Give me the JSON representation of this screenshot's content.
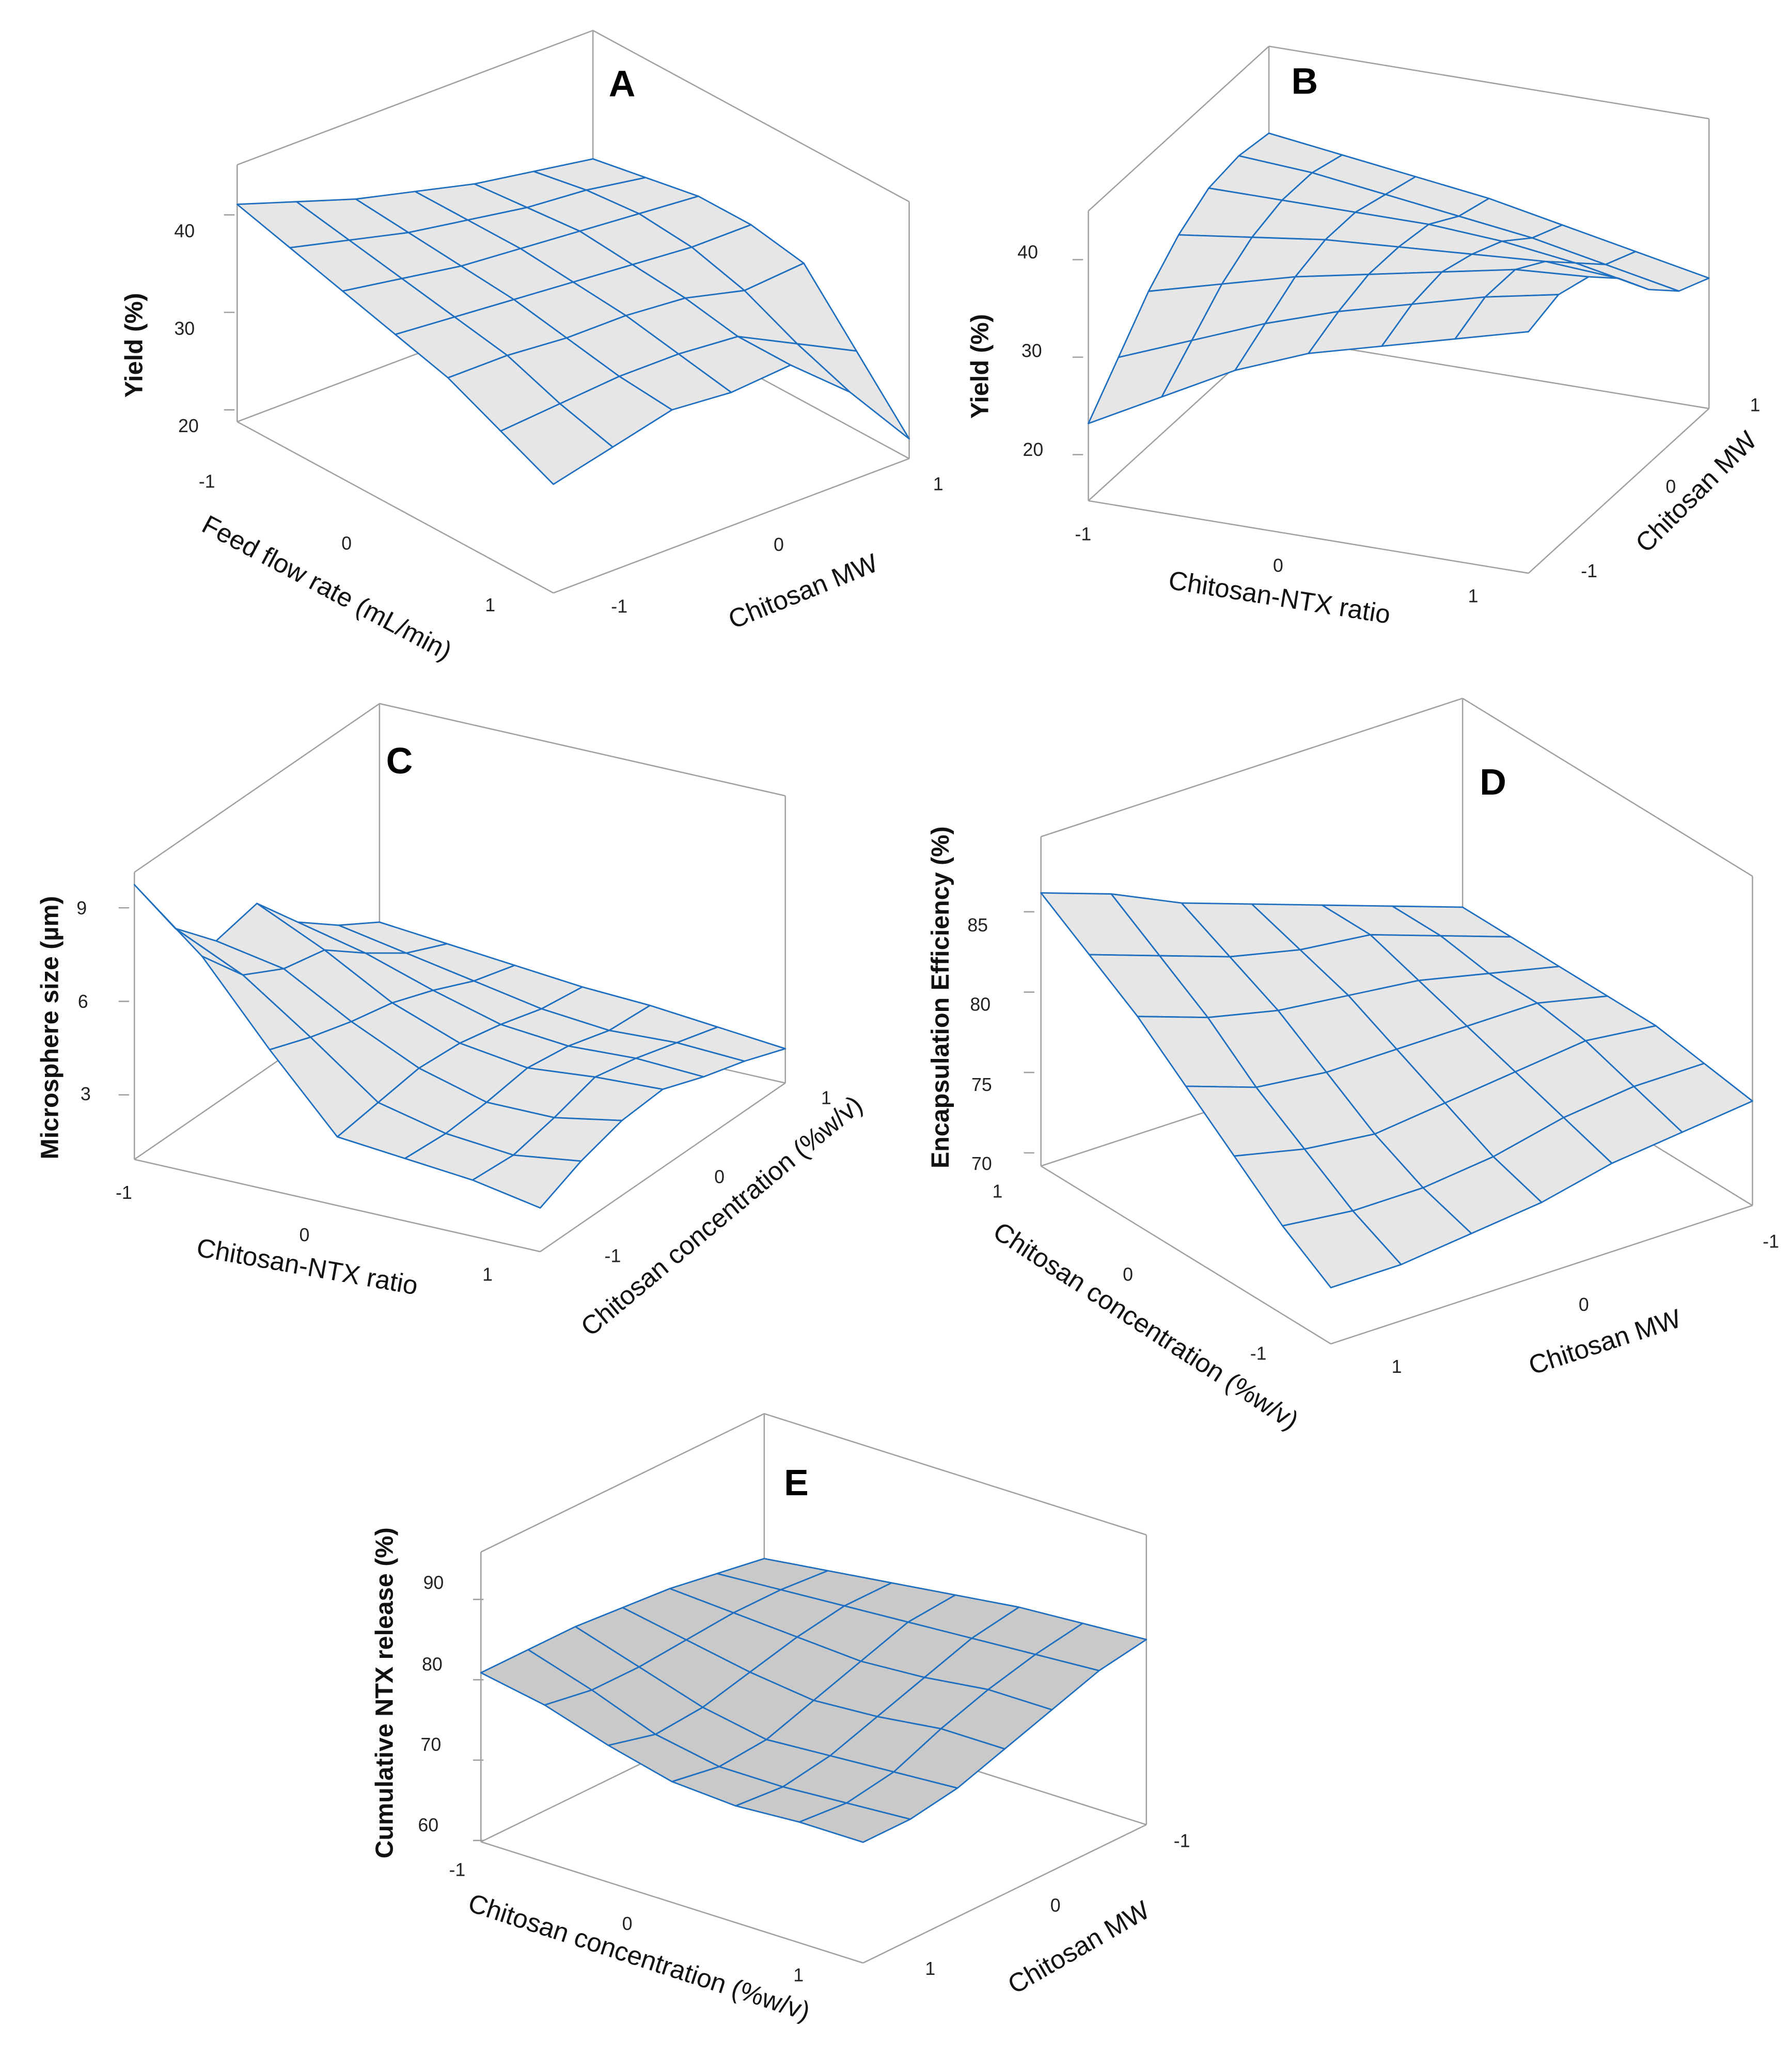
{
  "chart_data": [
    {
      "type": "surface",
      "panel": "A",
      "xlabel": "Feed flow rate (mL/min)",
      "ylabel": "Chitosan MW",
      "zlabel": "Yield (%)",
      "x_ticks": [
        "-1",
        "0",
        "1"
      ],
      "y_ticks": [
        "-1",
        "0",
        "1"
      ],
      "z_ticks": [
        "40",
        "30",
        "20"
      ],
      "xlim": [
        -1,
        1
      ],
      "ylim": [
        -1,
        1
      ],
      "zlim": [
        19,
        45
      ],
      "surface_color": "#e6e6e6",
      "mesh_color": "#1f6fc0",
      "z": [
        [
          41,
          39,
          37,
          35.5,
          34,
          33,
          32
        ],
        [
          39.5,
          38,
          36.5,
          35.5,
          34.5,
          34,
          33
        ],
        [
          38,
          37,
          36,
          35.5,
          35,
          34.5,
          34
        ],
        [
          36.5,
          36,
          35.5,
          35,
          34.5,
          34,
          34
        ],
        [
          35,
          35,
          34.5,
          34.5,
          34,
          32.5,
          33
        ],
        [
          32.5,
          33,
          33.5,
          33.5,
          33,
          30,
          27
        ],
        [
          30,
          31.5,
          33,
          32.5,
          33,
          28,
          21
        ]
      ]
    },
    {
      "type": "surface",
      "panel": "B",
      "xlabel": "Chitosan-NTX ratio",
      "ylabel": "Chitosan MW",
      "zlabel": "Yield (%)",
      "x_ticks": [
        "-1",
        "0",
        "1"
      ],
      "y_ticks": [
        "-1",
        "0",
        "1"
      ],
      "z_ticks": [
        "40",
        "30",
        "20"
      ],
      "xlim": [
        -1,
        1
      ],
      "ylim": [
        -1,
        1
      ],
      "zlim": [
        15,
        45
      ],
      "surface_color": "#e6e6e6",
      "mesh_color": "#1f6fc0",
      "z": [
        [
          23,
          27,
          31,
          34,
          36,
          36.5,
          36
        ],
        [
          27,
          30,
          33,
          35,
          36,
          36,
          35
        ],
        [
          31,
          33,
          35,
          36,
          36,
          35,
          34
        ],
        [
          34,
          35.5,
          36.5,
          36.5,
          36,
          34,
          33
        ],
        [
          36,
          37.5,
          38,
          37,
          35.5,
          33,
          31.5
        ],
        [
          38,
          39.5,
          39.5,
          37.5,
          34.5,
          31.5,
          30
        ],
        [
          40,
          41,
          40,
          37,
          33,
          30,
          28.5
        ]
      ]
    },
    {
      "type": "surface",
      "panel": "C",
      "xlabel": "Chitosan-NTX ratio",
      "ylabel": "Chitosan concentration (%w/v)",
      "zlabel": "Microsphere  size (µm)",
      "x_ticks": [
        "-1",
        "0",
        "1"
      ],
      "y_ticks": [
        "-1",
        "0",
        "1"
      ],
      "z_ticks": [
        "9",
        "6",
        "3"
      ],
      "xlim": [
        -1,
        1
      ],
      "ylim": [
        -1,
        1
      ],
      "zlim": [
        1,
        10.2
      ],
      "surface_color": "#e6e6e6",
      "mesh_color": "#1f6fc0",
      "z": [
        [
          9.8,
          7.5,
          6.2,
          6.5,
          5,
          4,
          3.2
        ],
        [
          8,
          6.5,
          5.8,
          5.5,
          4.5,
          3.6,
          3
        ],
        [
          5.5,
          5,
          4.6,
          4.3,
          3.8,
          3.2,
          2.8
        ],
        [
          3.2,
          3.4,
          3.6,
          3.5,
          3.2,
          2.8,
          2.6
        ],
        [
          3,
          2.9,
          3,
          3.2,
          3,
          2.6,
          2.5
        ],
        [
          2.8,
          2.7,
          3,
          3.4,
          3.1,
          2.7,
          2.3
        ],
        [
          2.4,
          3,
          3.4,
          3.5,
          3,
          2.6,
          2.1
        ]
      ]
    },
    {
      "type": "surface",
      "panel": "D",
      "xlabel": "Chitosan concentration (%w/v)",
      "ylabel": "Chitosan MW",
      "zlabel": "Encapsulation Efficiency (%)",
      "x_ticks": [
        "1",
        "0",
        "-1"
      ],
      "y_ticks": [
        "1",
        "0",
        "-1"
      ],
      "z_ticks": [
        "85",
        "80",
        "75",
        "70"
      ],
      "xlim": [
        -1,
        1
      ],
      "ylim": [
        -1,
        1
      ],
      "zlim": [
        69.5,
        90
      ],
      "surface_color": "#e6e6e6",
      "mesh_color": "#1f6fc0",
      "z": [
        [
          76,
          75.5,
          75,
          74,
          73.5,
          73,
          73
        ],
        [
          76.5,
          76.5,
          76,
          75,
          74.5,
          74.5,
          75
        ],
        [
          77,
          77.5,
          77,
          76.5,
          76,
          76.5,
          77.5
        ],
        [
          77,
          78,
          78,
          78,
          78,
          78.5,
          80
        ],
        [
          77,
          78,
          79,
          79.5,
          80,
          81,
          82.5
        ],
        [
          77,
          78.5,
          80,
          80.5,
          81.5,
          83,
          84.5
        ],
        [
          77,
          78.5,
          80,
          81.5,
          83,
          85,
          86.5
        ]
      ]
    },
    {
      "type": "surface",
      "panel": "E",
      "xlabel": "Chitosan concentration (%w/v)",
      "ylabel": "Chitosan MW",
      "zlabel": "Cumulative NTX release (%)",
      "x_ticks": [
        "-1",
        "0",
        "1"
      ],
      "y_ticks": [
        "1",
        "0",
        "-1"
      ],
      "z_ticks": [
        "90",
        "80",
        "70",
        "60"
      ],
      "xlim": [
        -1,
        1
      ],
      "ylim": [
        -1,
        1
      ],
      "zlim": [
        58,
        94
      ],
      "surface_color": "#c9c9c9",
      "mesh_color": "#2a5fc8",
      "z": [
        [
          76,
          77,
          78,
          78.5,
          79,
          79,
          79
        ],
        [
          77,
          77.5,
          77.5,
          77,
          76.5,
          76.5,
          77.5
        ],
        [
          78,
          78,
          77,
          75.5,
          74,
          73.5,
          75
        ],
        [
          79,
          78.5,
          76.5,
          74.5,
          72.5,
          72,
          73
        ],
        [
          80,
          79,
          77,
          75,
          73,
          72,
          72.5
        ],
        [
          80.5,
          79.5,
          78,
          76,
          73.5,
          72.5,
          73
        ],
        [
          81,
          80,
          78,
          76,
          74,
          73,
          73
        ]
      ]
    }
  ]
}
